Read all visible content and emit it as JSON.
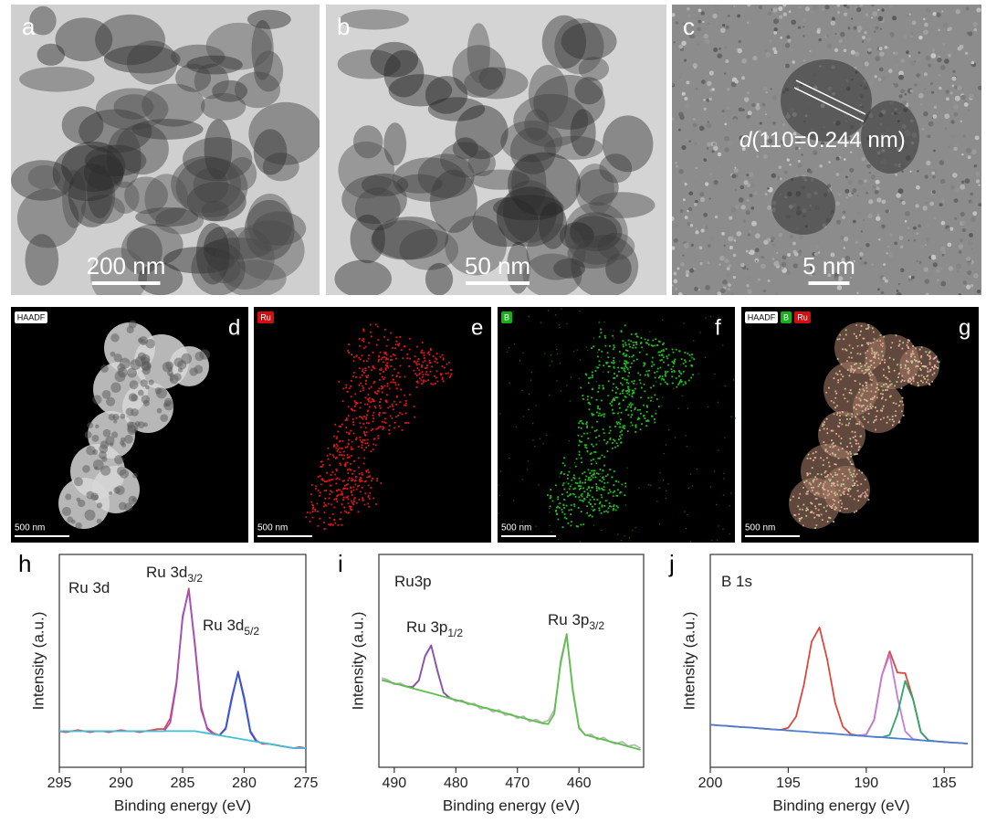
{
  "figure": {
    "images": [
      {
        "letter": "a",
        "scale_bar": "200 nm"
      },
      {
        "letter": "b",
        "scale_bar": "50 nm"
      },
      {
        "letter": "c",
        "scale_bar": "5 nm",
        "annotation": {
          "italic": "d",
          "text": "(110=0.244 nm)"
        }
      }
    ],
    "maps": [
      {
        "letter": "d",
        "scale_bar": "500 nm",
        "tags": [
          {
            "text": "HAADF",
            "color": "#ffffff"
          }
        ]
      },
      {
        "letter": "e",
        "scale_bar": "500 nm",
        "tags": [
          {
            "text": "Ru",
            "color": "#d01010"
          }
        ]
      },
      {
        "letter": "f",
        "scale_bar": "500 nm",
        "tags": [
          {
            "text": "B",
            "color": "#18b018"
          }
        ]
      },
      {
        "letter": "g",
        "scale_bar": "500 nm",
        "tags": [
          {
            "text": "HAADF",
            "color": "#ffffff"
          },
          {
            "text": "B",
            "color": "#18b018"
          },
          {
            "text": "Ru",
            "color": "#d01010"
          }
        ]
      }
    ]
  },
  "chart_data": [
    {
      "type": "line",
      "panel": "h",
      "xlabel": "Binding energy (eV)",
      "ylabel": "Intensity (a.u.)",
      "xlim": [
        295,
        275
      ],
      "xticks": [
        295,
        290,
        285,
        280,
        275
      ],
      "ylim": [
        0,
        100
      ],
      "annotations": [
        {
          "text": "Ru 3d"
        },
        {
          "text": "Ru 3d",
          "sub": "3/2"
        },
        {
          "text": "Ru 3d",
          "sub": "5/2"
        }
      ],
      "x": [
        295,
        294.5,
        294,
        293.5,
        293,
        292.5,
        292,
        291.5,
        291,
        290.5,
        290,
        289.5,
        289,
        288.5,
        288,
        287.5,
        287,
        286.5,
        286,
        285.5,
        285,
        284.5,
        284,
        283.5,
        283,
        282.5,
        282,
        281.5,
        281,
        280.5,
        280,
        279.5,
        279,
        278.5,
        278,
        277.5,
        277,
        276.5,
        276,
        275.5,
        275
      ],
      "series": [
        {
          "color": "#e0474c",
          "values": [
            17,
            16.5,
            17,
            17.5,
            17,
            16.5,
            17,
            17,
            16.5,
            17,
            17.5,
            17,
            17,
            16.5,
            17,
            17.5,
            18,
            18,
            23,
            40,
            70,
            84,
            57,
            27,
            18.5,
            16,
            15,
            18,
            32,
            45,
            33,
            17,
            12.5,
            11,
            11,
            10.5,
            10,
            9.5,
            9,
            9.5,
            9
          ]
        },
        {
          "color": "#a050c0",
          "values": [
            17,
            17,
            17,
            17,
            17,
            17,
            17,
            17,
            17,
            17,
            17,
            17,
            17,
            17,
            17,
            17,
            17,
            17,
            21,
            39,
            71,
            83,
            58,
            28.5,
            18,
            15.5,
            15,
            18.5,
            33,
            44.5,
            32,
            16.5,
            12,
            11.5,
            11,
            10.5,
            10,
            9.5,
            9,
            9,
            9
          ]
        },
        {
          "color": "#2a5cd8",
          "values": [
            null,
            null,
            null,
            null,
            null,
            null,
            null,
            null,
            null,
            null,
            null,
            null,
            null,
            null,
            null,
            null,
            null,
            null,
            null,
            null,
            null,
            null,
            null,
            null,
            null,
            null,
            15,
            18.5,
            33,
            44.5,
            32,
            16.5,
            12,
            null,
            null,
            null,
            null,
            null,
            null,
            null,
            null
          ]
        },
        {
          "color": "#40c0d8",
          "values": [
            17,
            17,
            17,
            17,
            17,
            17,
            17,
            17,
            17,
            17,
            17,
            17,
            17,
            17,
            17,
            17,
            17,
            17,
            17,
            17,
            17,
            17,
            17,
            16.5,
            16,
            15.5,
            15,
            14.5,
            14,
            13.5,
            13,
            12.5,
            12,
            11.5,
            11,
            10.5,
            10,
            9.5,
            9,
            9,
            9
          ]
        }
      ]
    },
    {
      "type": "line",
      "panel": "i",
      "xlabel": "Binding energy (eV)",
      "ylabel": "Intensity (a.u.)",
      "xlim": [
        492.5,
        449.5
      ],
      "xticks": [
        490,
        480,
        470,
        460
      ],
      "ylim": [
        0,
        100
      ],
      "annotations": [
        {
          "text": "Ru3p"
        },
        {
          "text": "Ru 3p",
          "sub": "1/2"
        },
        {
          "text": "Ru 3p",
          "sub": "3/2"
        }
      ],
      "x": [
        492,
        491,
        490,
        489,
        488,
        487,
        486,
        485,
        484,
        483,
        482,
        481,
        480,
        479,
        478,
        477,
        476,
        475,
        474,
        473,
        472,
        471,
        470,
        469,
        468,
        467,
        466,
        465,
        464,
        463,
        462,
        461,
        460,
        459,
        458,
        457,
        456,
        455,
        454,
        453,
        452,
        451,
        450
      ],
      "series": [
        {
          "color": "#b8b8b8",
          "values": [
            42,
            41,
            39,
            39.5,
            38,
            38,
            41,
            52,
            57,
            46,
            35,
            33,
            31,
            31.5,
            29.5,
            30,
            27.5,
            28,
            26,
            27,
            24.5,
            25,
            23,
            24,
            21.5,
            22.5,
            21,
            22,
            27,
            48,
            62,
            37,
            19,
            15,
            15.5,
            13,
            14,
            12,
            11,
            12,
            10,
            10.5,
            9
          ]
        },
        {
          "color": "#8a4fae",
          "values": [
            41,
            40.2,
            39.4,
            38.7,
            37.9,
            37.6,
            40.8,
            52.3,
            57.3,
            45.2,
            35.2,
            32.4,
            31.6,
            30.9,
            30.1,
            null,
            null,
            null,
            null,
            null,
            null,
            null,
            null,
            null,
            null,
            null,
            null,
            null,
            null,
            null,
            null,
            null,
            null,
            null,
            null,
            null,
            null,
            null,
            null,
            null,
            null,
            null,
            null
          ]
        },
        {
          "color": "#5cc04a",
          "values": [
            41,
            40.2,
            39.4,
            38.7,
            37.9,
            37.1,
            36.3,
            35.5,
            34.8,
            34,
            33.2,
            32.4,
            31.6,
            30.9,
            30.1,
            29.3,
            28.5,
            27.7,
            27,
            26.2,
            25.4,
            24.6,
            23.8,
            23.1,
            22.3,
            21.5,
            20.7,
            20.3,
            25.2,
            49.4,
            62.6,
            35.8,
            18.3,
            15.3,
            14.5,
            13.7,
            12.9,
            12.1,
            11.4,
            10.6,
            9.8,
            9,
            8.2
          ]
        }
      ]
    },
    {
      "type": "line",
      "panel": "j",
      "xlabel": "Binding energy (eV)",
      "ylabel": "Intensity (a.u.)",
      "xlim": [
        200,
        183.2
      ],
      "xticks": [
        200,
        195,
        190,
        185
      ],
      "ylim": [
        0,
        100
      ],
      "annotations": [
        {
          "text": "B 1s"
        }
      ],
      "x": [
        200,
        199.5,
        199,
        198.5,
        198,
        197.5,
        197,
        196.5,
        196,
        195.5,
        195,
        194.5,
        194,
        193.5,
        193,
        192.5,
        192,
        191.5,
        191,
        190.5,
        190,
        189.5,
        189,
        188.5,
        188,
        187.5,
        187,
        186.5,
        186,
        185.5,
        185,
        184.5,
        184,
        183.5
      ],
      "series": [
        {
          "color": "#d9483b",
          "values": [
            20,
            19.7,
            19.5,
            19.2,
            18.9,
            18.7,
            18.4,
            18.1,
            17.8,
            17.6,
            18.6,
            23.8,
            38.7,
            59,
            65.7,
            50.6,
            30.3,
            19.1,
            15.6,
            14.9,
            15.4,
            22.2,
            43.1,
            54.4,
            44.5,
            44.2,
            32.1,
            16.5,
            12.6,
            12.2,
            11.9,
            11.6,
            11.4,
            11.1
          ]
        },
        {
          "color": "#c57ad8",
          "values": [
            null,
            null,
            null,
            null,
            null,
            null,
            null,
            null,
            null,
            null,
            null,
            null,
            null,
            null,
            null,
            null,
            null,
            null,
            null,
            14.9,
            15.4,
            22.2,
            43.1,
            53,
            33,
            16.9,
            13.2,
            12.7,
            null,
            null,
            null,
            null,
            null,
            null
          ]
        },
        {
          "color": "#2ea56a",
          "values": [
            null,
            null,
            null,
            null,
            null,
            null,
            null,
            null,
            null,
            null,
            null,
            null,
            null,
            null,
            null,
            null,
            null,
            null,
            null,
            null,
            null,
            14.3,
            14.1,
            15.2,
            25,
            40.6,
            31.9,
            16.5,
            12.6,
            12.2,
            null,
            null,
            null,
            null
          ]
        },
        {
          "color": "#4a7fd0",
          "values": [
            20,
            19.7,
            19.5,
            19.2,
            18.9,
            18.7,
            18.4,
            18.1,
            17.8,
            17.6,
            17.3,
            17,
            16.8,
            16.5,
            16.2,
            16,
            15.7,
            15.4,
            15.1,
            14.9,
            14.6,
            14.3,
            14.1,
            13.8,
            13.5,
            13.3,
            13,
            12.7,
            12.4,
            12.2,
            11.9,
            11.6,
            11.4,
            11.1
          ]
        }
      ]
    }
  ]
}
